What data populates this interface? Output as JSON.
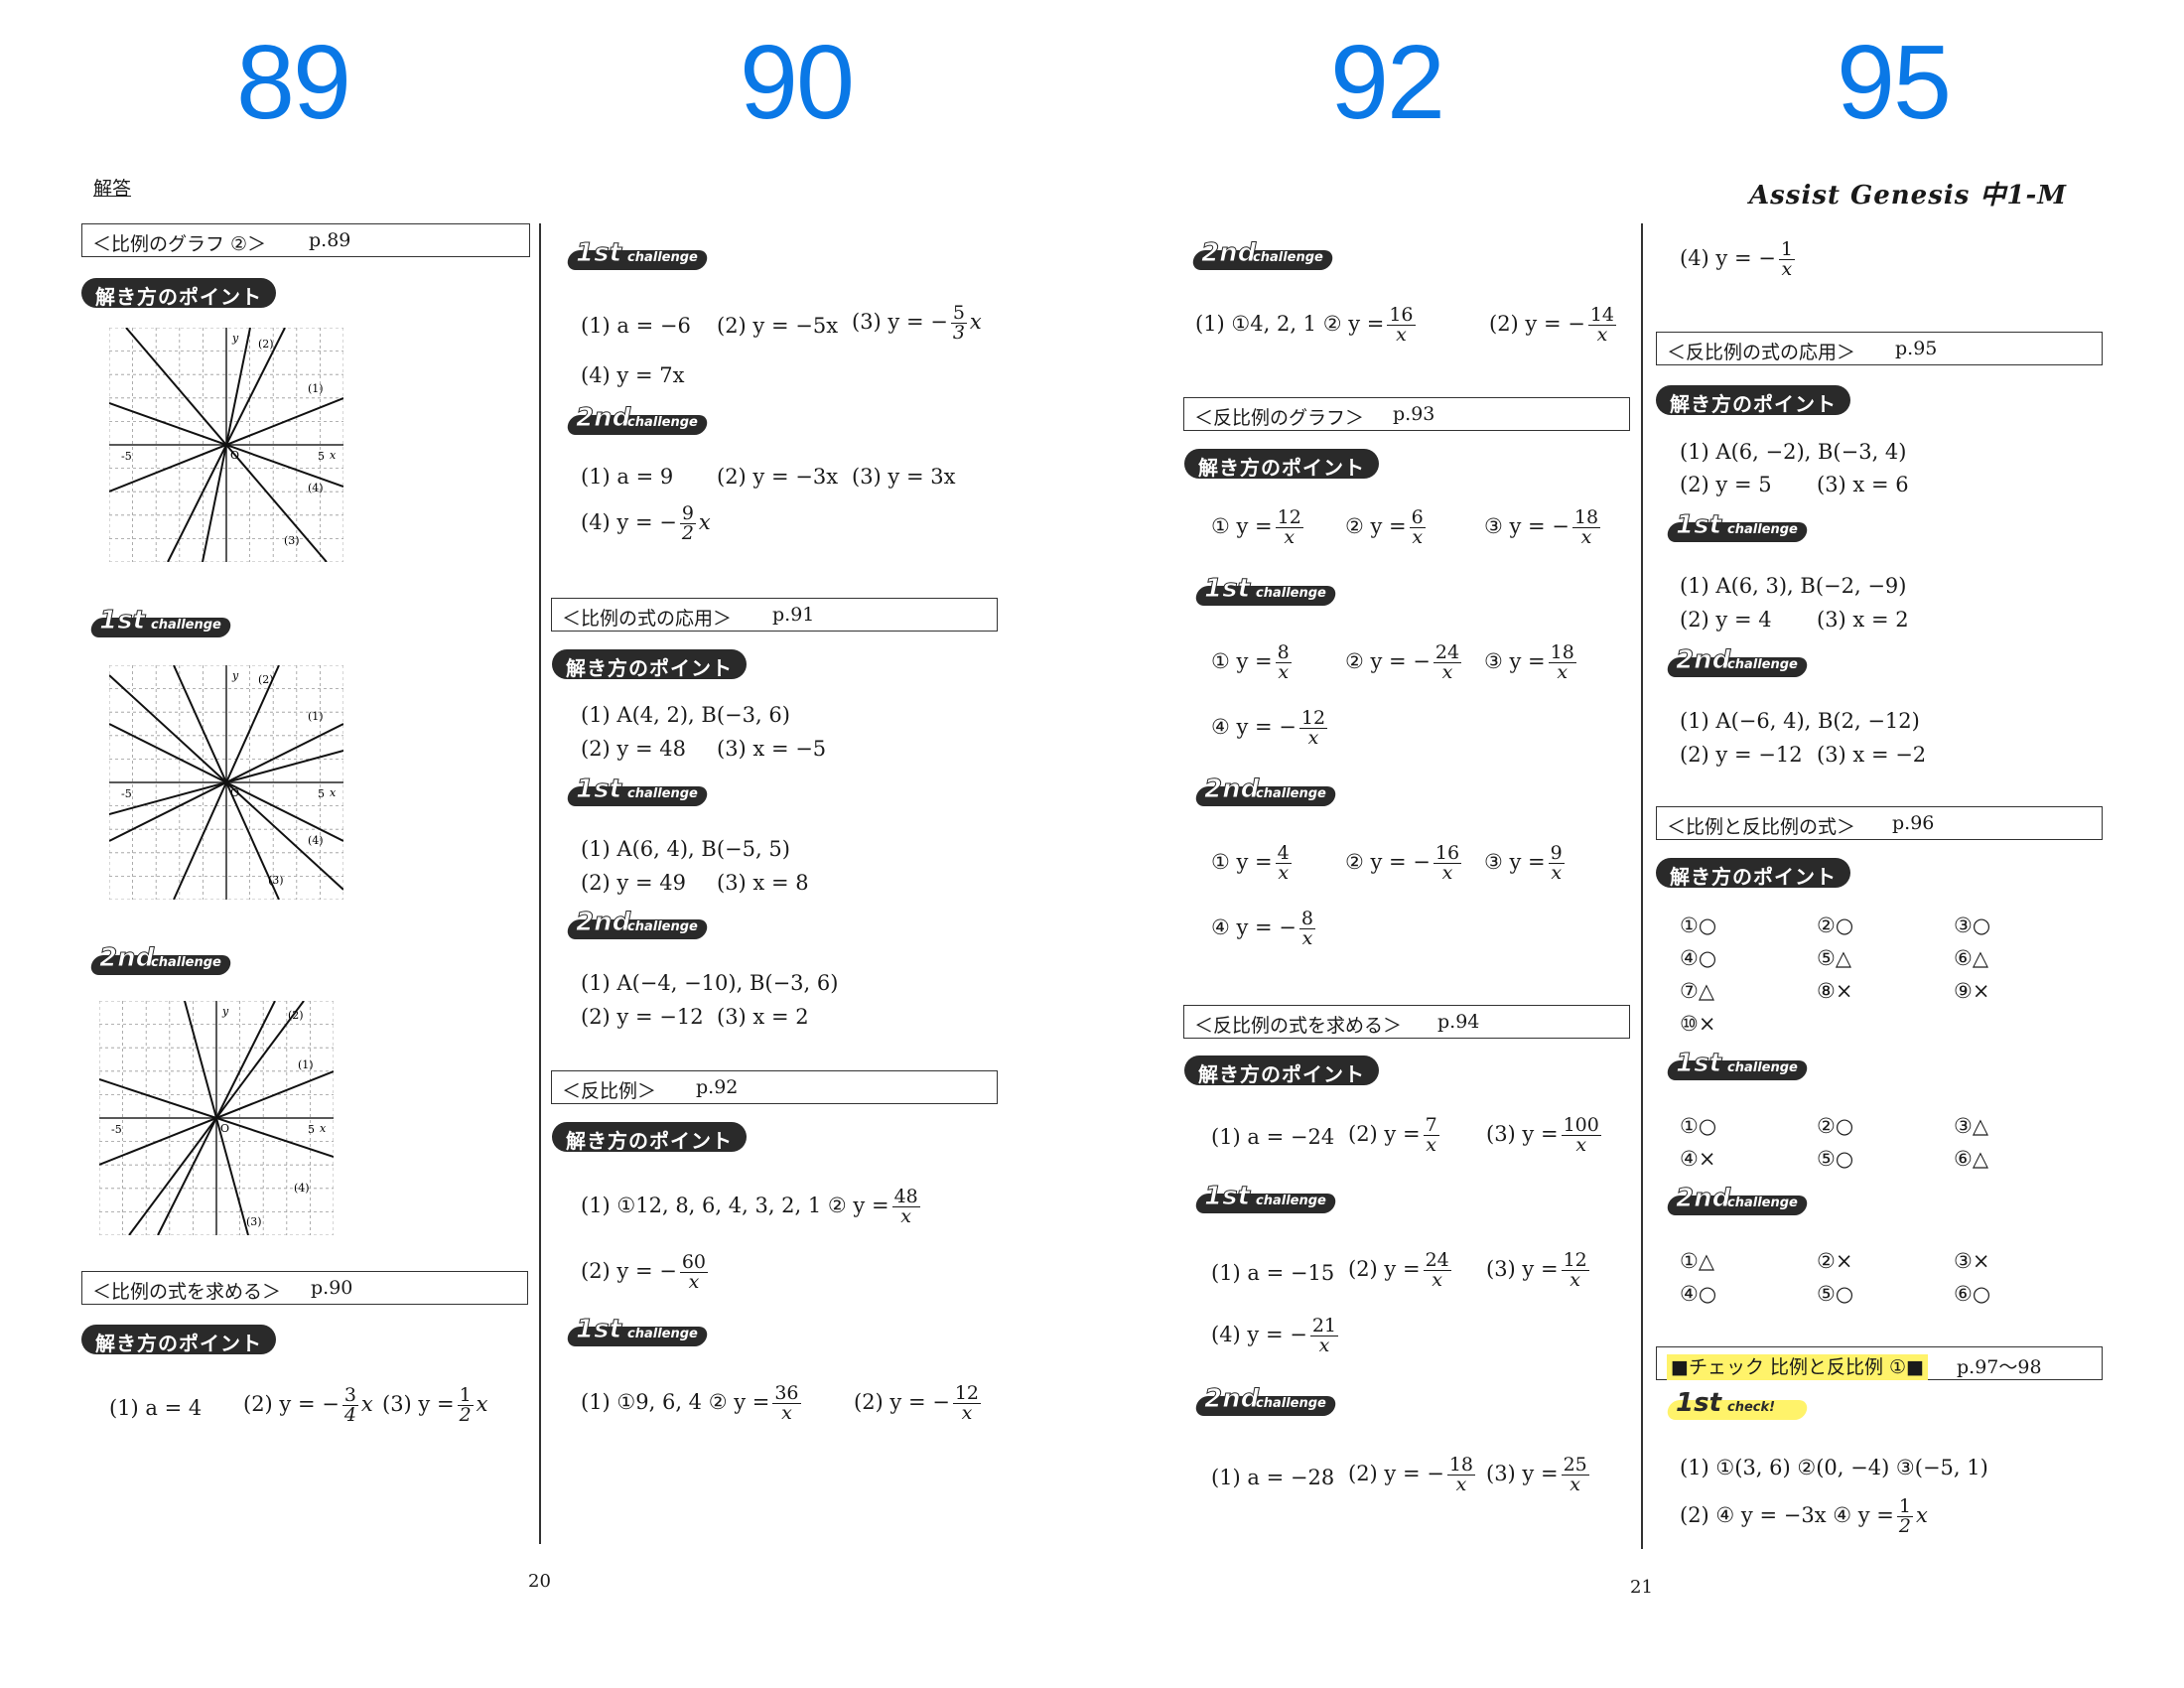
{
  "page_numbers": [
    "89",
    "90",
    "92",
    "95"
  ],
  "header_label": "解答",
  "brand": "Assist Genesis 中1-M",
  "footer_pages": [
    "20",
    "21"
  ],
  "badges": {
    "point": "解き方のポイント",
    "first": "1st",
    "second": "2nd",
    "chal_word": "challenge",
    "check_word": "check!"
  },
  "graph_labels": {
    "y": "y",
    "x": "x",
    "neg5": "-5",
    "pos5": "5",
    "o": "O",
    "g1": "(1)",
    "g2": "(2)",
    "g3": "(3)",
    "g4": "(4)"
  },
  "sections": {
    "s1": {
      "title": "＜比例のグラフ ②＞",
      "page": "p.89"
    },
    "s2": {
      "title": "＜比例の式を求める＞",
      "page": "p.90"
    },
    "s3": {
      "title": "＜比例の式の応用＞",
      "page": "p.91"
    },
    "s4": {
      "title": "＜反比例＞",
      "page": "p.92"
    },
    "s5": {
      "title": "＜反比例のグラフ＞",
      "page": "p.93"
    },
    "s6": {
      "title": "＜反比例の式を求める＞",
      "page": "p.94"
    },
    "s7": {
      "title": "＜反比例の式の応用＞",
      "page": "p.95"
    },
    "s8": {
      "title": "＜比例と反比例の式＞",
      "page": "p.96"
    },
    "s9": {
      "title": "■チェック 比例と反比例 ①■",
      "page": "p.97～98"
    }
  },
  "answers": {
    "a1": "(1) a = 4",
    "a2": "(2) y = −",
    "a2n": "3",
    "a2d": "4",
    "a2x": "x",
    "a3": "(3) y =",
    "a3n": "1",
    "a3d": "2",
    "a3x": "x",
    "c1": "(1) a = −6",
    "c2": "(2) y = −5x",
    "c3": "(3) y = −",
    "c3n": "5",
    "c3d": "3",
    "c3x": "x",
    "c4": "(4) y = 7x",
    "d1": "(1) a = 9",
    "d2": "(2) y = −3x",
    "d3": "(3) y = 3x",
    "d4": "(4) y = −",
    "d4n": "9",
    "d4d": "2",
    "d4x": "x",
    "e1": "(1) A(4, 2), B(−3, 6)",
    "e2": "(2) y = 48",
    "e3": "(3) x = −5",
    "f1": "(1) A(6, 4), B(−5, 5)",
    "f2": "(2) y = 49",
    "f3": "(3) x = 8",
    "g1": "(1) A(−4, −10), B(−3, 6)",
    "g2": "(2) y = −12",
    "g3": "(3) x = 2",
    "h1": "(1) ①12, 8, 6, 4, 3, 2, 1 ② y =",
    "h1n": "48",
    "h1d": "x",
    "h2": "(2) y = −",
    "h2n": "60",
    "h2d": "x",
    "i1": "(1) ①9, 6, 4 ② y =",
    "i1n": "36",
    "i1d": "x",
    "i2": "(2) y = −",
    "i2n": "12",
    "i2d": "x",
    "j1": "(1) ①4, 2, 1 ② y =",
    "j1n": "16",
    "j1d": "x",
    "j2": "(2) y = −",
    "j2n": "14",
    "j2d": "x",
    "k1": "① y =",
    "k1n": "12",
    "k1d": "x",
    "k2": "② y =",
    "k2n": "6",
    "k2d": "x",
    "k3": "③ y = −",
    "k3n": "18",
    "k3d": "x",
    "l1": "① y =",
    "l1n": "8",
    "l1d": "x",
    "l2": "② y = −",
    "l2n": "24",
    "l2d": "x",
    "l3": "③ y =",
    "l3n": "18",
    "l3d": "x",
    "l4": "④ y = −",
    "l4n": "12",
    "l4d": "x",
    "m1": "① y =",
    "m1n": "4",
    "m1d": "x",
    "m2": "② y = −",
    "m2n": "16",
    "m2d": "x",
    "m3": "③ y =",
    "m3n": "9",
    "m3d": "x",
    "m4": "④ y = −",
    "m4n": "8",
    "m4d": "x",
    "n1": "(1) a = −24",
    "n2": "(2) y =",
    "n2n": "7",
    "n2d": "x",
    "n3": "(3) y =",
    "n3n": "100",
    "n3d": "x",
    "o1": "(1) a = −15",
    "o2": "(2) y =",
    "o2n": "24",
    "o2d": "x",
    "o3": "(3) y =",
    "o3n": "12",
    "o3d": "x",
    "o4": "(4) y = −",
    "o4n": "21",
    "o4d": "x",
    "p1": "(1) a = −28",
    "p2": "(2) y = −",
    "p2n": "18",
    "p2d": "x",
    "p3": "(3) y =",
    "p3n": "25",
    "p3d": "x",
    "q1": "(4) y = −",
    "q1n": "1",
    "q1d": "x",
    "r1": "(1) A(6, −2), B(−3, 4)",
    "r2": "(2) y = 5",
    "r3": "(3) x = 6",
    "s1": "(1) A(6, 3), B(−2, −9)",
    "s2": "(2) y = 4",
    "s3": "(3) x = 2",
    "t1": "(1) A(−6, 4), B(2, −12)",
    "t2": "(2) y = −12",
    "t3": "(3) x = −2",
    "u": [
      "①○",
      "②○",
      "③○",
      "④○",
      "⑤△",
      "⑥△",
      "⑦△",
      "⑧×",
      "⑨×",
      "⑩×"
    ],
    "v": [
      "①○",
      "②○",
      "③△",
      "④×",
      "⑤○",
      "⑥△"
    ],
    "w": [
      "①△",
      "②×",
      "③×",
      "④○",
      "⑤○",
      "⑥○"
    ],
    "x1": "(1) ①(3, 6)  ②(0, −4) ③(−5, 1)",
    "x2": "(2) ④ y = −3x ④ y =",
    "x2n": "1",
    "x2d": "2",
    "x2x": "x"
  }
}
